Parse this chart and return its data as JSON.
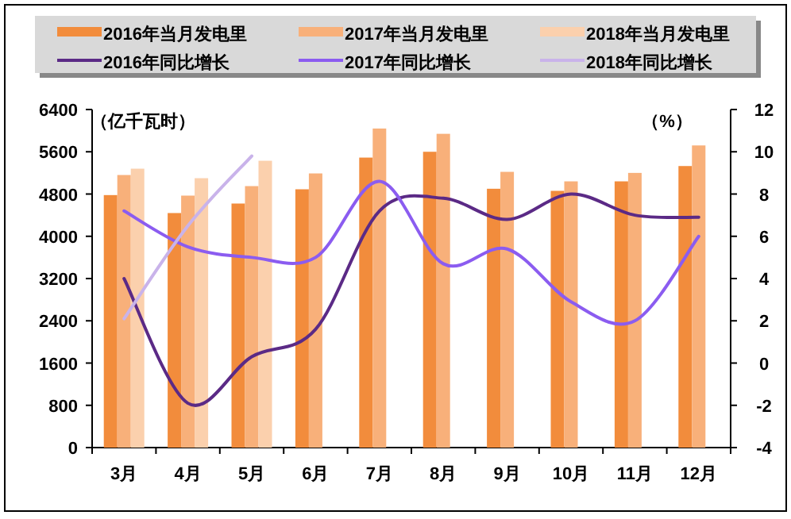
{
  "chart_data": {
    "type": "bar",
    "ylabel": "（亿千瓦时）",
    "y2label": "（%）",
    "categories": [
      "3月",
      "4月",
      "5月",
      "6月",
      "7月",
      "8月",
      "9月",
      "10月",
      "11月",
      "12月"
    ],
    "series": [
      {
        "name": "2016年当月发电里",
        "color": "#f28c3c",
        "values": [
          4780,
          4440,
          4620,
          4890,
          5490,
          5600,
          4900,
          4860,
          5040,
          5330
        ]
      },
      {
        "name": "2017年当月发电里",
        "color": "#f8b07a",
        "values": [
          5160,
          4770,
          4950,
          5190,
          6040,
          5940,
          5220,
          5040,
          5200,
          5720
        ]
      },
      {
        "name": "2018年当月发电里",
        "color": "#fbd0ad",
        "values": [
          5280,
          5100,
          5430,
          null,
          null,
          null,
          null,
          null,
          null,
          null
        ]
      },
      {
        "name": "2016年同比增长",
        "type": "line",
        "axis": "y2",
        "color": "#5b2a86",
        "values": [
          4.0,
          -1.9,
          0.3,
          1.6,
          7.2,
          7.8,
          6.8,
          8.0,
          7.0,
          6.9
        ]
      },
      {
        "name": "2017年同比增长",
        "type": "line",
        "axis": "y2",
        "color": "#8b5cf0",
        "values": [
          7.2,
          5.5,
          5.0,
          5.0,
          8.6,
          4.7,
          5.4,
          2.9,
          2.0,
          6.0
        ]
      },
      {
        "name": "2018年同比增长",
        "type": "line",
        "axis": "y2",
        "color": "#c9b3ea",
        "values": [
          2.1,
          6.5,
          9.8,
          null,
          null,
          null,
          null,
          null,
          null,
          null
        ]
      }
    ],
    "ylim": [
      0,
      6400
    ],
    "yticks": [
      0,
      800,
      1600,
      2400,
      3200,
      4000,
      4800,
      5600,
      6400
    ],
    "y2lim": [
      -4,
      12
    ],
    "y2ticks": [
      -4,
      -2,
      0,
      2,
      4,
      6,
      8,
      10,
      12
    ],
    "legend": "top",
    "grid": false,
    "marker": "none"
  }
}
